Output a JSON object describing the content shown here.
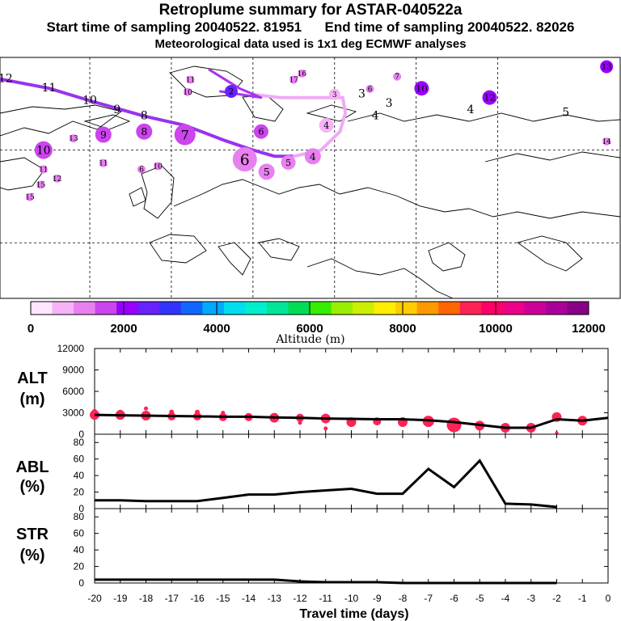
{
  "titles": {
    "main": "Retroplume summary for ASTAR-040522a",
    "sampling": "Start time of sampling 20040522. 81951      End time of sampling 20040522. 82026",
    "meteo": "Meteorological data used is 1x1 deg ECMWF analyses"
  },
  "colorbar": {
    "label": "Altitude (m)",
    "tick_labels": [
      "0",
      "2000",
      "4000",
      "6000",
      "8000",
      "10000",
      "12000"
    ],
    "colors": [
      "#ffe6ff",
      "#f7b3f7",
      "#e880f0",
      "#cc44ee",
      "#9900ff",
      "#6622ff",
      "#3333ff",
      "#1166ff",
      "#00aaff",
      "#00ddee",
      "#00eecc",
      "#00e699",
      "#00dd55",
      "#33ee00",
      "#99ee00",
      "#ccee00",
      "#ffee00",
      "#ffcc00",
      "#ff9900",
      "#ff6600",
      "#ff2255",
      "#ff0066",
      "#ee0088",
      "#cc0099",
      "#aa0099",
      "#880088"
    ]
  },
  "map": {
    "trajectory_labels": [
      {
        "text": "12",
        "lon": -61,
        "lat": 82
      },
      {
        "text": "11",
        "lon": -45,
        "lat": 79
      },
      {
        "text": "10",
        "lon": -30,
        "lat": 75
      },
      {
        "text": "9",
        "lon": -20,
        "lat": 72
      },
      {
        "text": "8",
        "lon": -10,
        "lat": 70
      },
      {
        "text": "3",
        "lon": 70,
        "lat": 77
      },
      {
        "text": "3",
        "lon": 80,
        "lat": 74
      },
      {
        "text": "4",
        "lon": 75,
        "lat": 70
      },
      {
        "text": "4",
        "lon": 110,
        "lat": 72
      },
      {
        "text": "5",
        "lon": 145,
        "lat": 71
      }
    ],
    "clusters": [
      {
        "text": "7",
        "lon": 5,
        "lat": 65,
        "c": "#cc44ee",
        "r": 13
      },
      {
        "text": "6",
        "lon": 27,
        "lat": 57,
        "c": "#e880f0",
        "r": 15
      },
      {
        "text": "5",
        "lon": 35,
        "lat": 53,
        "c": "#e880f0",
        "r": 10
      },
      {
        "text": "5",
        "lon": 43,
        "lat": 56,
        "c": "#e880f0",
        "r": 9
      },
      {
        "text": "4",
        "lon": 52,
        "lat": 58,
        "c": "#e880f0",
        "r": 10
      },
      {
        "text": "4",
        "lon": 57,
        "lat": 68,
        "c": "#f7b3f7",
        "r": 9
      },
      {
        "text": "8",
        "lon": -10,
        "lat": 66,
        "c": "#cc44ee",
        "r": 10
      },
      {
        "text": "9",
        "lon": -25,
        "lat": 65,
        "c": "#cc44ee",
        "r": 10
      },
      {
        "text": "10",
        "lon": -47,
        "lat": 60,
        "c": "#cc44ee",
        "r": 11
      },
      {
        "text": "6",
        "lon": 33,
        "lat": 66,
        "c": "#cc44ee",
        "r": 9
      },
      {
        "text": "3",
        "lon": 60,
        "lat": 78,
        "c": "#f7b3f7",
        "r": 7
      },
      {
        "text": "2",
        "lon": 22,
        "lat": 79,
        "c": "#6622ff",
        "r": 8
      },
      {
        "text": "13",
        "lon": 160,
        "lat": 87,
        "c": "#9900ff",
        "r": 8
      },
      {
        "text": "12",
        "lon": 117,
        "lat": 77,
        "c": "#9900ff",
        "r": 9
      },
      {
        "text": "10",
        "lon": 92,
        "lat": 80,
        "c": "#9900ff",
        "r": 9
      }
    ],
    "small_labels": [
      {
        "text": "13",
        "lon": -36,
        "lat": 63
      },
      {
        "text": "11",
        "lon": -25,
        "lat": 55
      },
      {
        "text": "11",
        "lon": -47,
        "lat": 53
      },
      {
        "text": "12",
        "lon": -42,
        "lat": 50
      },
      {
        "text": "15",
        "lon": -48,
        "lat": 48
      },
      {
        "text": "15",
        "lon": -52,
        "lat": 44
      },
      {
        "text": "6",
        "lon": -11,
        "lat": 53
      },
      {
        "text": "10",
        "lon": -5,
        "lat": 54
      },
      {
        "text": "10",
        "lon": 6,
        "lat": 78
      },
      {
        "text": "11",
        "lon": 7,
        "lat": 82
      },
      {
        "text": "16",
        "lon": 48,
        "lat": 84
      },
      {
        "text": "17",
        "lon": 45,
        "lat": 82
      },
      {
        "text": "6",
        "lon": 73,
        "lat": 79
      },
      {
        "text": "7",
        "lon": 83,
        "lat": 83
      },
      {
        "text": "14",
        "lon": 160,
        "lat": 62
      }
    ],
    "grid_lons": [
      -30,
      0,
      30,
      60,
      90,
      120
    ],
    "grid_lats": [
      60,
      30
    ]
  },
  "alt_panel": {
    "ylabel": [
      "ALT",
      "(m)"
    ],
    "yticks": [
      "12000",
      "9000",
      "6000",
      "3000",
      "0"
    ]
  },
  "abl_panel": {
    "ylabel": [
      "ABL",
      "(%)"
    ],
    "yticks": [
      "80",
      "60",
      "40",
      "20",
      "0"
    ]
  },
  "str_panel": {
    "ylabel": [
      "STR",
      "(%)"
    ],
    "yticks": [
      "80",
      "60",
      "40",
      "20",
      "0"
    ]
  },
  "xaxis": {
    "label": "Travel time (days)",
    "tick_labels": [
      "-20",
      "-19",
      "-18",
      "-17",
      "-16",
      "-15",
      "-14",
      "-13",
      "-12",
      "-11",
      "-10",
      "-9",
      "-8",
      "-7",
      "-6",
      "-5",
      "-4",
      "-3",
      "-2",
      "-1",
      "0"
    ]
  },
  "chart_data": {
    "type": "line",
    "title": "Retroplume summary for ASTAR-040522a",
    "xlabel": "Travel time (days)",
    "x": [
      -20,
      -19,
      -18,
      -17,
      -16,
      -15,
      -14,
      -13,
      -12,
      -11,
      -10,
      -9,
      -8,
      -7,
      -6,
      -5,
      -4,
      -3,
      -2,
      -1,
      0
    ],
    "series": [
      {
        "name": "ALT (m)",
        "ylim": [
          0,
          12000
        ],
        "values": [
          2700,
          2650,
          2600,
          2550,
          2500,
          2450,
          2450,
          2350,
          2300,
          2200,
          2150,
          2100,
          2100,
          1950,
          1700,
          1300,
          900,
          900,
          2100,
          1900,
          2300
        ]
      },
      {
        "name": "ABL (%)",
        "ylim": [
          0,
          90
        ],
        "values": [
          10,
          10,
          9,
          9,
          9,
          13,
          17,
          17,
          20,
          22,
          24,
          18,
          18,
          48,
          26,
          58,
          6,
          5,
          2,
          null,
          null
        ]
      },
      {
        "name": "STR (%)",
        "ylim": [
          0,
          90
        ],
        "values": [
          4,
          4,
          4,
          4,
          4,
          4,
          4,
          4,
          2,
          1,
          1,
          1,
          0,
          0,
          0,
          0,
          0,
          0,
          0,
          null,
          null
        ]
      }
    ],
    "alt_points": [
      {
        "x": -20,
        "y": 2700,
        "c": "#ff2255",
        "r": 6
      },
      {
        "x": -20,
        "y": 3200,
        "c": "#ff2255",
        "r": 3
      },
      {
        "x": -19,
        "y": 2700,
        "c": "#ff2255",
        "r": 6
      },
      {
        "x": -19,
        "y": 3100,
        "c": "#ff2255",
        "r": 3
      },
      {
        "x": -18,
        "y": 2600,
        "c": "#ff2255",
        "r": 6
      },
      {
        "x": -18,
        "y": 3600,
        "c": "#ff2255",
        "r": 2.5
      },
      {
        "x": -17,
        "y": 2500,
        "c": "#ff2255",
        "r": 5
      },
      {
        "x": -17,
        "y": 3100,
        "c": "#ff2255",
        "r": 3
      },
      {
        "x": -16,
        "y": 2500,
        "c": "#ff2255",
        "r": 5
      },
      {
        "x": -16,
        "y": 3100,
        "c": "#ff2255",
        "r": 3
      },
      {
        "x": -15,
        "y": 2400,
        "c": "#ff2255",
        "r": 5
      },
      {
        "x": -15,
        "y": 3000,
        "c": "#ff2255",
        "r": 2.5
      },
      {
        "x": -14,
        "y": 2400,
        "c": "#ff2255",
        "r": 5
      },
      {
        "x": -13,
        "y": 2300,
        "c": "#ff2255",
        "r": 6
      },
      {
        "x": -12,
        "y": 2300,
        "c": "#ff2255",
        "r": 5
      },
      {
        "x": -12,
        "y": 1600,
        "c": "#ff2255",
        "r": 2.5
      },
      {
        "x": -11,
        "y": 2200,
        "c": "#ff2255",
        "r": 6
      },
      {
        "x": -11,
        "y": 800,
        "c": "#ff2255",
        "r": 2.5
      },
      {
        "x": -10,
        "y": 1700,
        "c": "#ff2255",
        "r": 6
      },
      {
        "x": -9,
        "y": 1800,
        "c": "#ff2255",
        "r": 5
      },
      {
        "x": -8,
        "y": 1700,
        "c": "#ff2255",
        "r": 6
      },
      {
        "x": -7,
        "y": 1800,
        "c": "#ff2255",
        "r": 7
      },
      {
        "x": -6,
        "y": 1300,
        "c": "#ff2255",
        "r": 9
      },
      {
        "x": -5,
        "y": 1200,
        "c": "#ff2255",
        "r": 6
      },
      {
        "x": -4,
        "y": 900,
        "c": "#ff2255",
        "r": 6
      },
      {
        "x": -3,
        "y": 900,
        "c": "#ff2255",
        "r": 6
      },
      {
        "x": -2,
        "y": 2400,
        "c": "#ff2255",
        "r": 6
      },
      {
        "x": -2,
        "y": 200,
        "c": "#ff2255",
        "r": 2
      },
      {
        "x": -1,
        "y": 1900,
        "c": "#ff2255",
        "r": 6
      }
    ]
  }
}
